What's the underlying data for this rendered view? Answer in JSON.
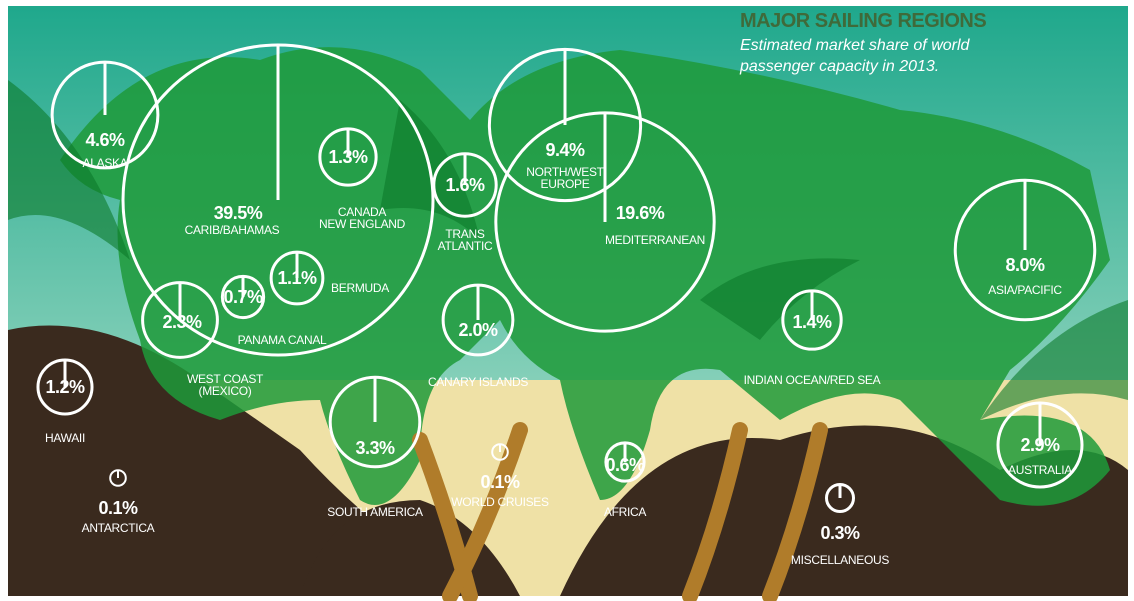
{
  "chart_data": {
    "type": "bubble",
    "title": "MAJOR SAILING REGIONS",
    "subtitle": "Estimated market share of world\npassenger capacity in 2013.",
    "categories": [
      "ALASKA",
      "CARIB/BAHAMAS",
      "CANADA\nNEW ENGLAND",
      "TRANS\nATLANTIC",
      "NORTH/WEST\nEUROPE",
      "MEDITERRANEAN",
      "BERMUDA",
      "PANAMA CANAL",
      "WEST COAST\n(MEXICO)",
      "HAWAII",
      "ANTARCTICA",
      "SOUTH AMERICA",
      "CANARY ISLANDS",
      "WORLD CRUISES",
      "AFRICA",
      "INDIAN OCEAN/RED SEA",
      "ASIA/PACIFIC",
      "AUSTRALIA",
      "MISCELLANEOUS"
    ],
    "values": [
      4.6,
      39.5,
      1.3,
      1.6,
      9.4,
      19.6,
      1.1,
      0.7,
      2.3,
      1.2,
      0.1,
      3.3,
      2.0,
      0.1,
      0.6,
      1.4,
      8.0,
      2.9,
      0.3
    ],
    "value_labels": [
      "4.6%",
      "39.5%",
      "1.3%",
      "1.6%",
      "9.4%",
      "19.6%",
      "1.1%",
      "0.7%",
      "2.3%",
      "1.2%",
      "0.1%",
      "3.3%",
      "2.0%",
      "0.1%",
      "0.6%",
      "1.4%",
      "8.0%",
      "2.9%",
      "0.3%"
    ],
    "color": "#ffffff"
  }
}
